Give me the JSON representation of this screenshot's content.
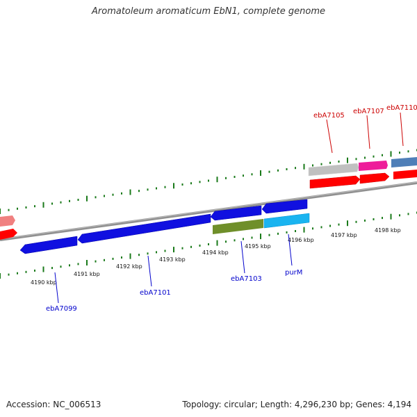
{
  "title": "Aromatoleum aromaticum EbN1, complete genome",
  "footer": {
    "accession": "Accession: NC_006513",
    "topology": "Topology: circular; Length: 4,296,230 bp; Genes: 4,194"
  },
  "scale": {
    "unit": "kbp",
    "labels": [
      "4190 kbp",
      "4191 kbp",
      "4192 kbp",
      "4193 kbp",
      "4194 kbp",
      "4195 kbp",
      "4196 kbp",
      "4197 kbp",
      "4198 kbp"
    ]
  },
  "genes_forward": [
    "ebA7105",
    "ebA7107",
    "ebA7110"
  ],
  "genes_reverse": [
    "ebA7099",
    "ebA7101",
    "ebA7103",
    "purM"
  ],
  "colors": {
    "forward_label": "#cc0000",
    "reverse_label": "#0000cc",
    "axis": "#888888",
    "tick": "#1a7a1a",
    "blue_feature": "#1010e0",
    "red_feature": "#ff0000",
    "gray_feature": "#c0c0c0",
    "magenta_feature": "#ee1d9a",
    "steelblue_feature": "#4f7fb8",
    "olive_feature": "#6f8f2a",
    "cyan_feature": "#1ab4f0",
    "pink_feature": "#f08080"
  }
}
